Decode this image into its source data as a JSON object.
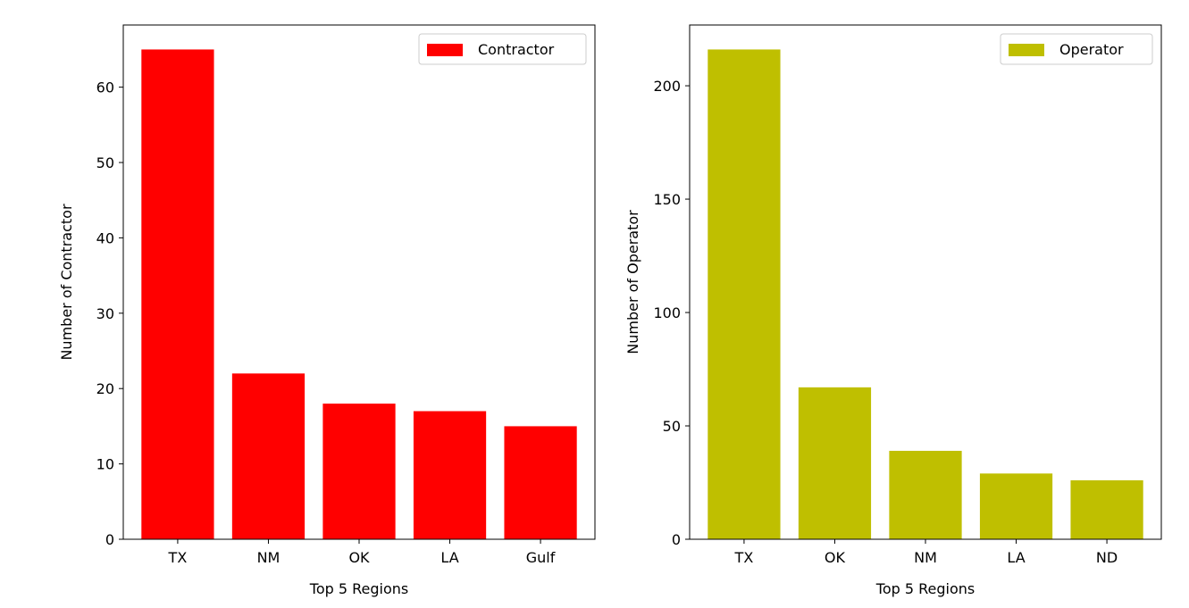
{
  "chart_data": [
    {
      "type": "bar",
      "title": "",
      "xlabel": "Top 5 Regions",
      "ylabel": "Number of Contractor",
      "categories": [
        "TX",
        "NM",
        "OK",
        "LA",
        "Gulf"
      ],
      "series": [
        {
          "name": "Contractor",
          "values": [
            65,
            22,
            18,
            17,
            15
          ],
          "color": "#ff0000"
        }
      ],
      "ylim": [
        0,
        68.25
      ],
      "yticks": [
        0,
        10,
        20,
        30,
        40,
        50,
        60
      ],
      "grid": false,
      "legend": "top-right"
    },
    {
      "type": "bar",
      "title": "",
      "xlabel": "Top 5 Regions",
      "ylabel": "Number of Operator",
      "categories": [
        "TX",
        "OK",
        "NM",
        "LA",
        "ND"
      ],
      "series": [
        {
          "name": "Operator",
          "values": [
            216,
            67,
            39,
            29,
            26
          ],
          "color": "#bfbf00"
        }
      ],
      "ylim": [
        0,
        226.8
      ],
      "yticks": [
        0,
        50,
        100,
        150,
        200
      ],
      "grid": false,
      "legend": "top-right"
    }
  ]
}
